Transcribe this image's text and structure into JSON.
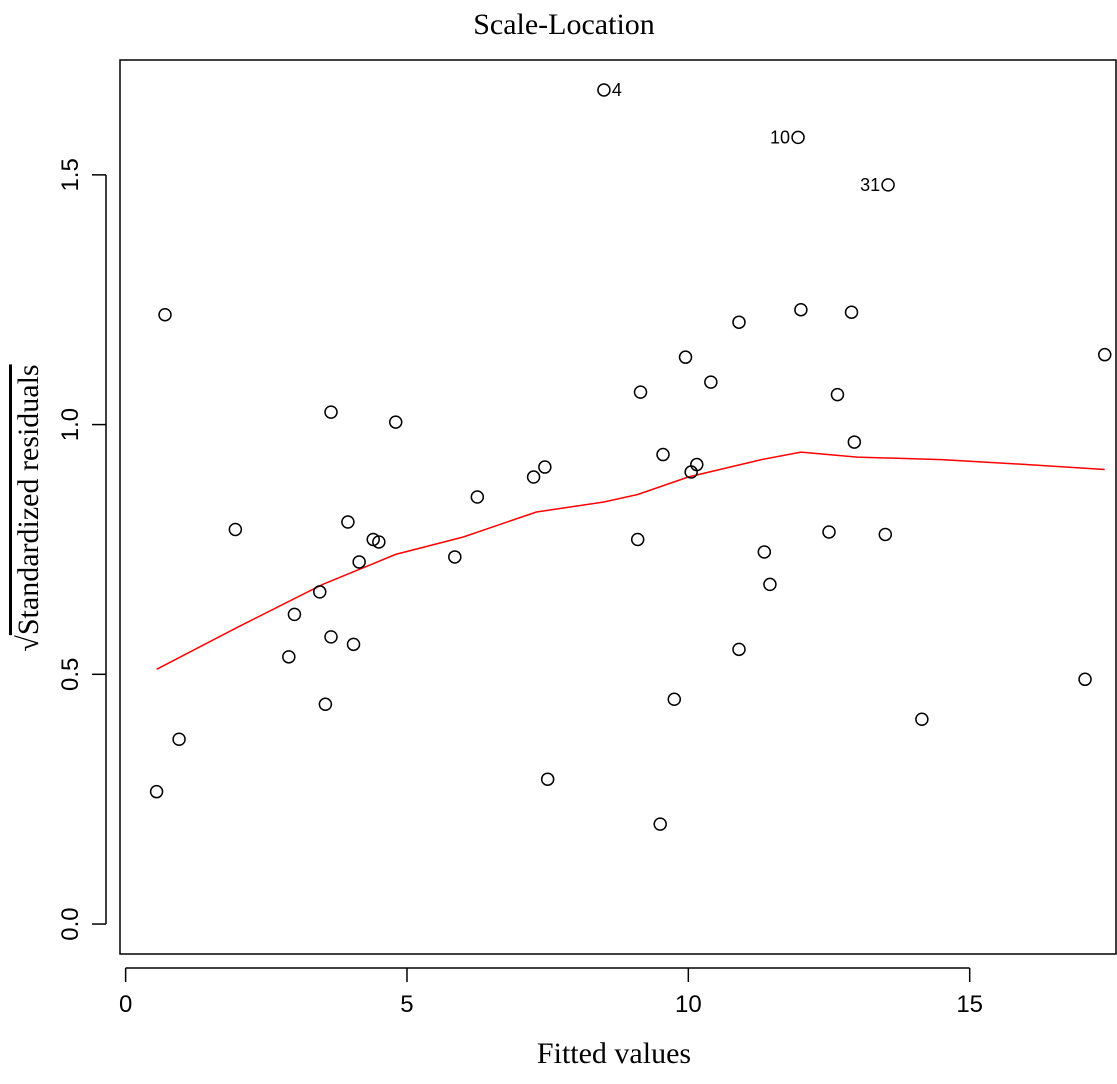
{
  "chart_data": {
    "type": "scatter",
    "title": "Scale-Location",
    "xlabel": "Fitted values",
    "ylabel": "Standardized residuals",
    "ylabel_prefix": "√",
    "xlim": [
      -0.1,
      17.6
    ],
    "ylim": [
      -0.06,
      1.73
    ],
    "x_ticks": [
      0,
      5,
      10,
      15
    ],
    "x_tick_labels": [
      "0",
      "5",
      "10",
      "15"
    ],
    "y_ticks": [
      0.0,
      0.5,
      1.0,
      1.5
    ],
    "y_tick_labels": [
      "0.0",
      "0.5",
      "1.0",
      "1.5"
    ],
    "grid": false,
    "legend": "none",
    "points": [
      {
        "x": 0.55,
        "y": 0.265
      },
      {
        "x": 0.7,
        "y": 1.22
      },
      {
        "x": 0.95,
        "y": 0.37
      },
      {
        "x": 1.95,
        "y": 0.79
      },
      {
        "x": 2.9,
        "y": 0.535
      },
      {
        "x": 3.0,
        "y": 0.62
      },
      {
        "x": 3.45,
        "y": 0.665
      },
      {
        "x": 3.55,
        "y": 0.44
      },
      {
        "x": 3.65,
        "y": 0.575
      },
      {
        "x": 3.65,
        "y": 1.025
      },
      {
        "x": 3.95,
        "y": 0.805
      },
      {
        "x": 4.05,
        "y": 0.56
      },
      {
        "x": 4.15,
        "y": 0.725
      },
      {
        "x": 4.4,
        "y": 0.77
      },
      {
        "x": 4.5,
        "y": 0.765
      },
      {
        "x": 4.8,
        "y": 1.005
      },
      {
        "x": 5.85,
        "y": 0.735
      },
      {
        "x": 6.25,
        "y": 0.855
      },
      {
        "x": 7.25,
        "y": 0.895
      },
      {
        "x": 7.45,
        "y": 0.915
      },
      {
        "x": 7.5,
        "y": 0.29
      },
      {
        "x": 8.5,
        "y": 1.67,
        "label": "4"
      },
      {
        "x": 9.1,
        "y": 0.77
      },
      {
        "x": 9.15,
        "y": 1.065
      },
      {
        "x": 9.5,
        "y": 0.2
      },
      {
        "x": 9.55,
        "y": 0.94
      },
      {
        "x": 9.75,
        "y": 0.45
      },
      {
        "x": 9.95,
        "y": 1.135
      },
      {
        "x": 10.05,
        "y": 0.905
      },
      {
        "x": 10.15,
        "y": 0.92
      },
      {
        "x": 10.4,
        "y": 1.085
      },
      {
        "x": 10.9,
        "y": 0.55
      },
      {
        "x": 10.9,
        "y": 1.205
      },
      {
        "x": 11.35,
        "y": 0.745
      },
      {
        "x": 11.45,
        "y": 0.68
      },
      {
        "x": 11.95,
        "y": 1.575,
        "label": "10"
      },
      {
        "x": 12.0,
        "y": 1.23
      },
      {
        "x": 12.5,
        "y": 0.785
      },
      {
        "x": 12.65,
        "y": 1.06
      },
      {
        "x": 12.9,
        "y": 1.225
      },
      {
        "x": 12.95,
        "y": 0.965
      },
      {
        "x": 13.5,
        "y": 0.78
      },
      {
        "x": 13.55,
        "y": 1.48,
        "label": "31"
      },
      {
        "x": 14.15,
        "y": 0.41
      },
      {
        "x": 17.05,
        "y": 0.49
      },
      {
        "x": 17.4,
        "y": 1.14
      }
    ],
    "smooth_line": {
      "color": "#ff0000",
      "x": [
        0.55,
        2.0,
        3.5,
        4.8,
        6.0,
        7.3,
        8.5,
        9.1,
        10.0,
        11.3,
        12.0,
        13.0,
        14.5,
        16.0,
        17.4
      ],
      "y": [
        0.51,
        0.595,
        0.68,
        0.74,
        0.775,
        0.825,
        0.845,
        0.86,
        0.895,
        0.93,
        0.945,
        0.935,
        0.93,
        0.92,
        0.91
      ]
    },
    "colors": {
      "points": "#000000",
      "smooth": "#ff0000",
      "axes": "#000000"
    }
  }
}
